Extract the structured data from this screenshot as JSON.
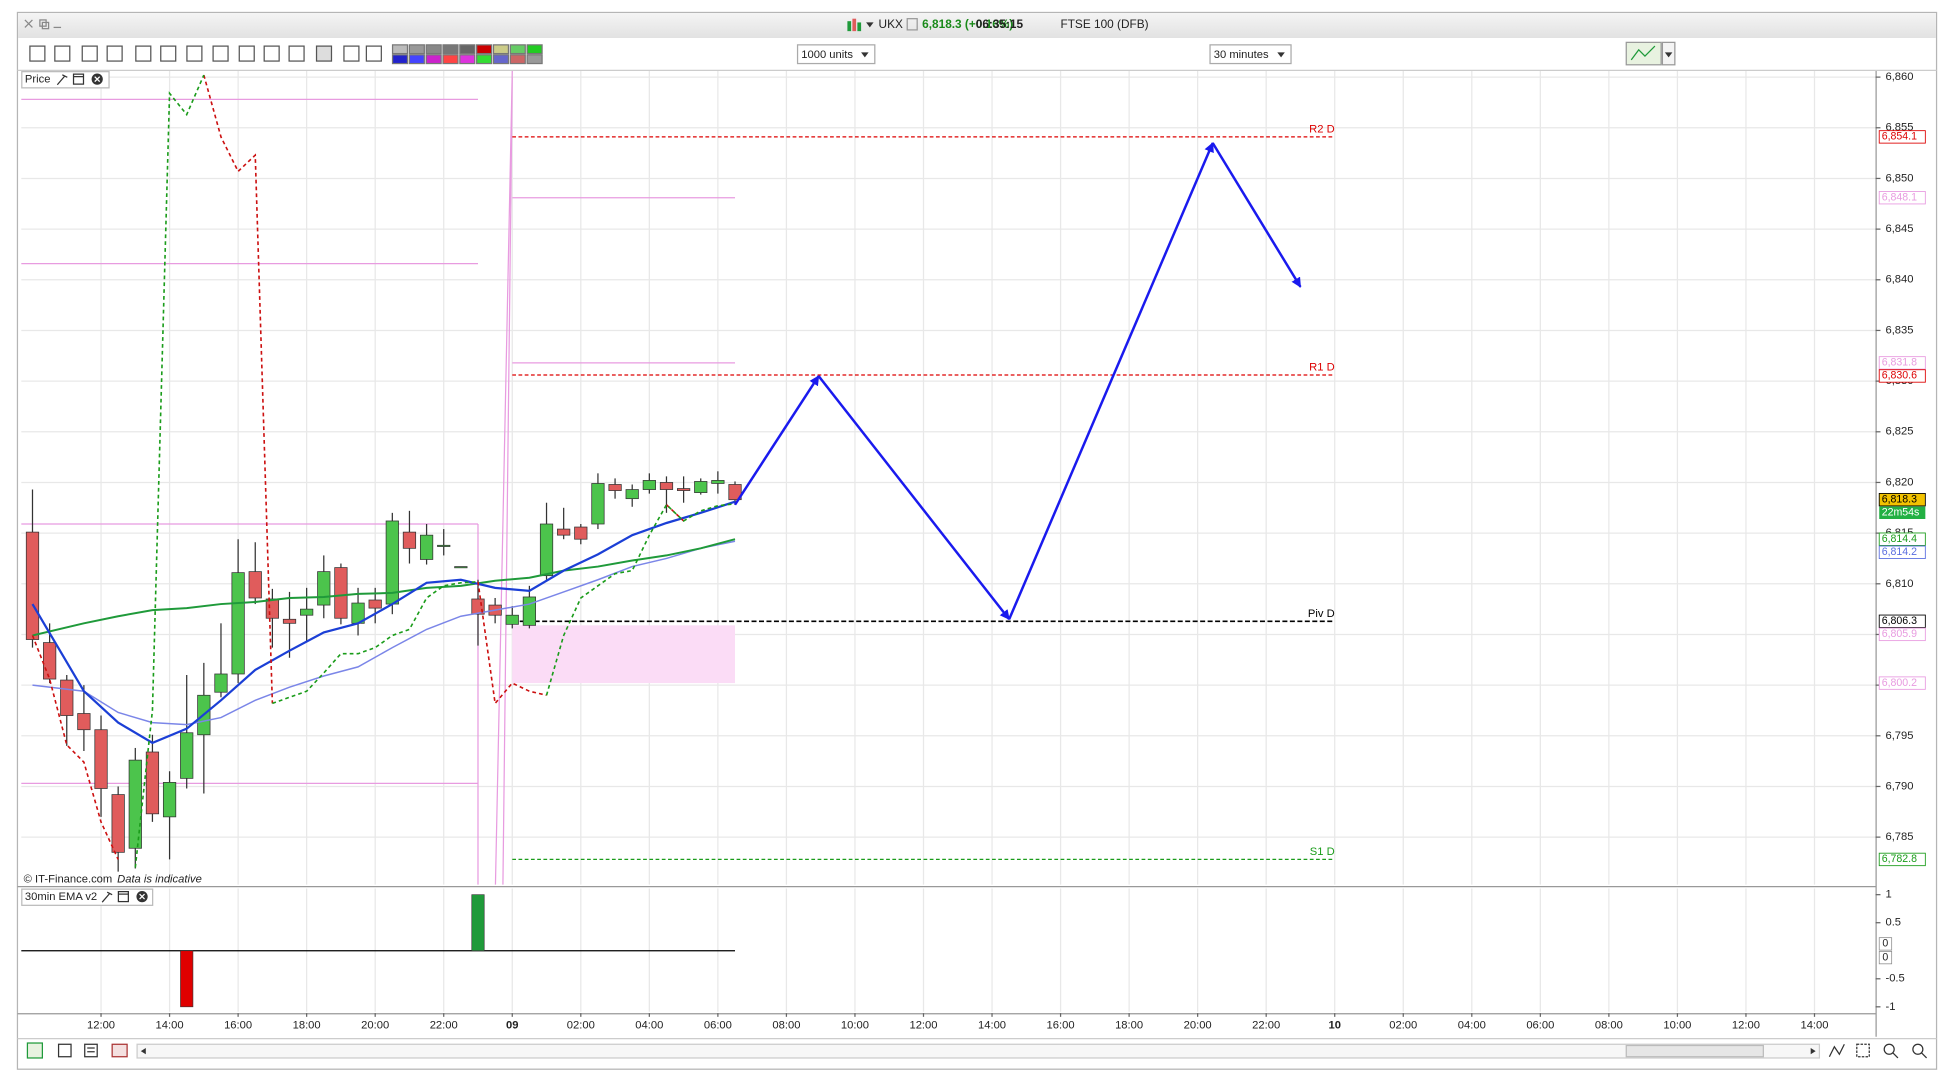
{
  "header": {
    "symbol": "UKX",
    "quote": "6,818.3 (+0.16%)",
    "time": "06:35:15",
    "name": "FTSE 100 (DFB)"
  },
  "toolbar": {
    "units": "1000 units",
    "interval": "30 minutes"
  },
  "chart_data": [
    {
      "type": "candlestick",
      "title": "Price",
      "watermark": [
        "© IT-Finance.com",
        "Data is indicative"
      ],
      "up_color": "#4cc44c",
      "down_color": "#e05c5c",
      "x": [
        10,
        10.5,
        11,
        11.5,
        12,
        12.5,
        13,
        13.5,
        14,
        14.5,
        15,
        15.5,
        16,
        16.5,
        17,
        17.5,
        18,
        18.5,
        19,
        19.5,
        20,
        20.5,
        21,
        21.5,
        22,
        22.5,
        23,
        23.5,
        24,
        24.5,
        25,
        25.5,
        26,
        26.5,
        27,
        27.5,
        28,
        28.5,
        29,
        29.5,
        30,
        30.5
      ],
      "open": [
        6815.1,
        6804.2,
        6800.5,
        6797.2,
        6795.6,
        6789.2,
        6783.9,
        6793.4,
        6787.0,
        6790.8,
        6795.1,
        6799.3,
        6801.1,
        6811.2,
        6808.5,
        6806.5,
        6806.9,
        6807.9,
        6811.6,
        6806.1,
        6808.4,
        6808.0,
        6815.1,
        6812.4,
        6813.8,
        6811.7,
        6808.5,
        6807.9,
        6806.0,
        6805.9,
        6810.8,
        6815.4,
        6815.6,
        6815.9,
        6819.8,
        6818.4,
        6819.3,
        6820.0,
        6819.4,
        6819.0,
        6819.9,
        6819.8
      ],
      "high": [
        6819.3,
        6806.1,
        6801.0,
        6800.0,
        6797.0,
        6790.0,
        6793.8,
        6795.1,
        6791.5,
        6801.0,
        6802.2,
        6806.1,
        6814.4,
        6814.1,
        6809.5,
        6809.2,
        6809.6,
        6812.8,
        6812.0,
        6809.6,
        6809.6,
        6817.0,
        6817.2,
        6815.9,
        6815.4,
        6811.7,
        6810.4,
        6808.6,
        6807.8,
        6809.8,
        6818.0,
        6817.5,
        6815.9,
        6820.9,
        6820.4,
        6819.8,
        6820.9,
        6820.6,
        6820.6,
        6820.4,
        6821.1,
        6820.1
      ],
      "low": [
        6803.7,
        6800.2,
        6794.0,
        6793.5,
        6787.0,
        6781.6,
        6781.9,
        6786.5,
        6782.8,
        6789.8,
        6789.3,
        6798.8,
        6800.2,
        6808.0,
        6803.7,
        6802.7,
        6804.3,
        6806.6,
        6806.0,
        6804.9,
        6806.1,
        6807.0,
        6812.0,
        6811.9,
        6812.8,
        6811.7,
        6803.9,
        6806.1,
        6805.6,
        6805.6,
        6810.4,
        6814.4,
        6813.9,
        6815.4,
        6818.4,
        6817.6,
        6818.9,
        6817.0,
        6818.0,
        6818.8,
        6818.9,
        6817.8
      ],
      "close": [
        6804.5,
        6800.6,
        6797.0,
        6795.6,
        6789.8,
        6783.5,
        6792.6,
        6787.3,
        6790.4,
        6795.3,
        6799.0,
        6801.1,
        6811.1,
        6808.6,
        6806.6,
        6806.1,
        6807.5,
        6811.2,
        6806.6,
        6808.1,
        6807.6,
        6816.2,
        6813.5,
        6814.8,
        6813.8,
        6811.7,
        6807.0,
        6806.9,
        6806.9,
        6808.7,
        6815.9,
        6814.8,
        6814.4,
        6819.9,
        6819.2,
        6819.3,
        6820.2,
        6819.3,
        6819.2,
        6820.1,
        6820.2,
        6818.3
      ],
      "lines": [
        {
          "color": "#7b86e8",
          "width": 1.2,
          "x": [
            10,
            11.5,
            12.5,
            13.5,
            14.5,
            15.5,
            16.5,
            17.5,
            18.5,
            19.5,
            20.5,
            21.5,
            22.5,
            23.5,
            24.5,
            25.5,
            26.5,
            27.5,
            28.5,
            29.5,
            30.5
          ],
          "values": [
            6800.0,
            6799.4,
            6797.3,
            6796.3,
            6796.1,
            6796.8,
            6798.5,
            6799.8,
            6800.9,
            6801.8,
            6803.7,
            6805.5,
            6806.8,
            6807.4,
            6808.0,
            6809.2,
            6810.4,
            6811.7,
            6812.5,
            6813.5,
            6814.2
          ]
        },
        {
          "color": "#1f9a3a",
          "width": 1.6,
          "x": [
            10,
            11.5,
            12.5,
            13.5,
            14.5,
            15.5,
            16.5,
            17.5,
            18.5,
            19.5,
            20.5,
            21.5,
            22.5,
            23.5,
            24.5,
            25.5,
            26.5,
            27.5,
            28.5,
            29.5,
            30.5
          ],
          "values": [
            6804.9,
            6806.1,
            6806.8,
            6807.4,
            6807.6,
            6808.0,
            6808.2,
            6808.6,
            6808.7,
            6809.0,
            6809.1,
            6809.6,
            6809.8,
            6810.3,
            6810.6,
            6811.3,
            6811.7,
            6812.3,
            6812.8,
            6813.5,
            6814.4
          ]
        },
        {
          "color": "#1b3fd6",
          "width": 1.8,
          "x": [
            10,
            11.5,
            12.5,
            13.5,
            14.5,
            15.5,
            16.5,
            17.5,
            18.5,
            19.5,
            20.5,
            21.5,
            22.5,
            23.5,
            24.5,
            25.5,
            26.5,
            27.5,
            28.5,
            29.5,
            30.5
          ],
          "values": [
            6808.0,
            6799.4,
            6796.3,
            6794.3,
            6795.7,
            6798.5,
            6801.5,
            6803.4,
            6805.2,
            6806.1,
            6808.0,
            6810.1,
            6810.4,
            6809.6,
            6809.3,
            6811.3,
            6812.9,
            6814.8,
            6816.0,
            6817.0,
            6818.1
          ]
        }
      ],
      "trails": [
        {
          "color": "#cc1010",
          "values": [
            6804.9,
            6800.6,
            6794.1,
            6792.4,
            6786.5,
            6782.8,
            null,
            null,
            null,
            null,
            6860.2,
            6854.1,
            6850.7,
            6852.3,
            6798.2,
            null,
            null,
            null,
            null,
            null,
            null,
            null,
            null,
            null,
            null,
            null,
            6810.2,
            6798.2,
            6800.2,
            6799.4,
            6799.0,
            null,
            null,
            null,
            null,
            null,
            null,
            6817.8,
            6816.2,
            null,
            null,
            null
          ]
        },
        {
          "color": "#1a9c1a",
          "values": [
            null,
            null,
            null,
            null,
            null,
            null,
            6782.0,
            6797.5,
            6858.4,
            6856.3,
            6860.2,
            null,
            null,
            null,
            6798.2,
            6798.8,
            6799.4,
            6801.2,
            6803.1,
            6803.1,
            6803.7,
            6804.9,
            6805.5,
            6808.6,
            6809.8,
            6810.1,
            6810.2,
            null,
            null,
            null,
            6799.0,
            6804.9,
            6808.6,
            6809.8,
            6811.0,
            6811.3,
            6814.8,
            6817.8,
            6816.2,
            6817.2,
            6817.7,
            6817.9
          ]
        }
      ],
      "level_color": "#e89be0",
      "ranges": [
        {
          "x": [
            9.67,
            23
          ],
          "levels": [
            6857.8,
            6841.6,
            6815.9,
            6790.3
          ]
        },
        {
          "x": [
            24,
            30.5
          ],
          "levels": [
            6848.1,
            6831.8
          ]
        }
      ],
      "box": {
        "x": [
          24,
          30.5
        ],
        "values": [
          6805.9,
          6800.2
        ],
        "color": "#fbdcf6"
      },
      "pivot_x": [
        24,
        48
      ],
      "pivots": [
        {
          "name": "R2 D",
          "value": 6854.1,
          "color": "#dd0000"
        },
        {
          "name": "R1 D",
          "value": 6830.6,
          "color": "#dd0000"
        },
        {
          "name": "Piv D",
          "value": 6806.3,
          "color": "#000000"
        },
        {
          "name": "S1 D",
          "value": 6782.8,
          "color": "#1a9c1a"
        }
      ],
      "projection": {
        "color": "#1a1aee",
        "x": [
          30.5,
          32.94,
          38.5,
          44.44,
          47.0
        ],
        "values": [
          6817.8,
          6830.5,
          6806.5,
          6853.5,
          6839.3
        ]
      },
      "tags": [
        {
          "value": 6854.1,
          "label": "6,854.1",
          "color": "#dd0000"
        },
        {
          "value": 6848.1,
          "label": "6,848.1",
          "color": "#e89be0"
        },
        {
          "value": 6831.8,
          "label": "6,831.8",
          "color": "#e89be0"
        },
        {
          "value": 6830.6,
          "label": "6,830.6",
          "color": "#dd0000"
        },
        {
          "value": 6818.3,
          "label": "6,818.3",
          "color": "#000000",
          "bg": "#f2c200"
        },
        {
          "value": 6814.4,
          "label": "6,814.4",
          "color": "#1a9c1a"
        },
        {
          "value": 6814.2,
          "label": "6,814.2",
          "color": "#5a6ee0"
        },
        {
          "value": 6806.3,
          "label": "6,806.3",
          "color": "#000000"
        },
        {
          "value": 6805.9,
          "label": "6,805.9",
          "color": "#e89be0"
        },
        {
          "value": 6800.2,
          "label": "6,800.2",
          "color": "#e89be0"
        },
        {
          "value": 6782.8,
          "label": "6,782.8",
          "color": "#1a9c1a"
        }
      ],
      "countdown": {
        "text": "22m54s",
        "bg": "#22b043"
      },
      "xlim": [
        9.67,
        63.78
      ],
      "ylim": [
        6780.3,
        6860.6
      ],
      "xticks": [
        {
          "value": 12,
          "label": "12:00"
        },
        {
          "value": 14,
          "label": "14:00"
        },
        {
          "value": 16,
          "label": "16:00"
        },
        {
          "value": 18,
          "label": "18:00"
        },
        {
          "value": 20,
          "label": "20:00"
        },
        {
          "value": 22,
          "label": "22:00"
        },
        {
          "value": 24,
          "label": "09"
        },
        {
          "value": 26,
          "label": "02:00"
        },
        {
          "value": 28,
          "label": "04:00"
        },
        {
          "value": 30,
          "label": "06:00"
        },
        {
          "value": 32,
          "label": "08:00"
        },
        {
          "value": 34,
          "label": "10:00"
        },
        {
          "value": 36,
          "label": "12:00"
        },
        {
          "value": 38,
          "label": "14:00"
        },
        {
          "value": 40,
          "label": "16:00"
        },
        {
          "value": 42,
          "label": "18:00"
        },
        {
          "value": 44,
          "label": "20:00"
        },
        {
          "value": 46,
          "label": "22:00"
        },
        {
          "value": 48,
          "label": "10"
        },
        {
          "value": 50,
          "label": "02:00"
        },
        {
          "value": 52,
          "label": "04:00"
        },
        {
          "value": 54,
          "label": "06:00"
        },
        {
          "value": 56,
          "label": "08:00"
        },
        {
          "value": 58,
          "label": "10:00"
        },
        {
          "value": 60,
          "label": "12:00"
        },
        {
          "value": 62,
          "label": "14:00"
        }
      ],
      "yticks": [
        {
          "value": 6785,
          "label": "6,785"
        },
        {
          "value": 6790,
          "label": "6,790"
        },
        {
          "value": 6795,
          "label": "6,795"
        },
        {
          "value": 6800,
          "label": "6,800"
        },
        {
          "value": 6805,
          "label": "6,805"
        },
        {
          "value": 6810,
          "label": "6,810"
        },
        {
          "value": 6815,
          "label": "6,815"
        },
        {
          "value": 6820,
          "label": "6,820"
        },
        {
          "value": 6825,
          "label": "6,825"
        },
        {
          "value": 6830,
          "label": "6,830"
        },
        {
          "value": 6835,
          "label": "6,835"
        },
        {
          "value": 6840,
          "label": "6,840"
        },
        {
          "value": 6845,
          "label": "6,845"
        },
        {
          "value": 6850,
          "label": "6,850"
        },
        {
          "value": 6855,
          "label": "6,855"
        },
        {
          "value": 6860,
          "label": "6,860"
        }
      ],
      "grid": true
    },
    {
      "type": "bar",
      "title": "30min EMA v2",
      "x": [
        14.5,
        23
      ],
      "values": [
        -1,
        1
      ],
      "colors": [
        "#e00000",
        "#1f9a3a"
      ],
      "line": {
        "color": "#000000",
        "x": [
          9.67,
          30.5
        ],
        "values": [
          0,
          0
        ]
      },
      "tags": [
        0,
        0
      ],
      "xlim": [
        9.67,
        63.78
      ],
      "ylim": [
        -1.09,
        1.11
      ],
      "yticks": [
        1,
        0.5,
        -0.5,
        -1
      ],
      "grid": "x"
    }
  ]
}
